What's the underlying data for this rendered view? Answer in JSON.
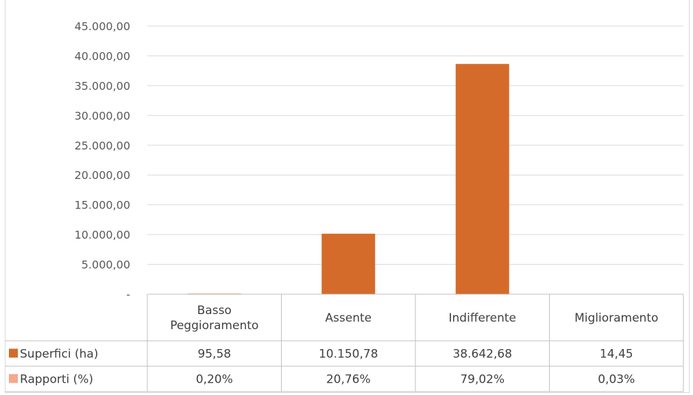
{
  "chart_data": {
    "type": "bar",
    "title": "",
    "xlabel": "",
    "ylabel": "",
    "ylim": [
      0,
      45000
    ],
    "yticks": [
      "-",
      "5.000,00",
      "10.000,00",
      "15.000,00",
      "20.000,00",
      "25.000,00",
      "30.000,00",
      "35.000,00",
      "40.000,00",
      "45.000,00"
    ],
    "categories": [
      [
        "Basso",
        "Peggioramento"
      ],
      [
        "Assente"
      ],
      [
        "Indifferente"
      ],
      [
        "Miglioramento"
      ]
    ],
    "grid": true,
    "series": [
      {
        "name": "Superfici (ha)",
        "color": "#d46b2a",
        "plotted": true,
        "values": [
          95.58,
          10150.78,
          38642.68,
          14.45
        ],
        "labels": [
          "95,58",
          "10.150,78",
          "38.642,68",
          "14,45"
        ]
      },
      {
        "name": "Rapporti (%)",
        "color": "#f4a98a",
        "plotted": false,
        "values": [
          0.2,
          20.76,
          79.02,
          0.03
        ],
        "labels": [
          "0,20%",
          "20,76%",
          "79,02%",
          "0,03%"
        ]
      }
    ]
  }
}
